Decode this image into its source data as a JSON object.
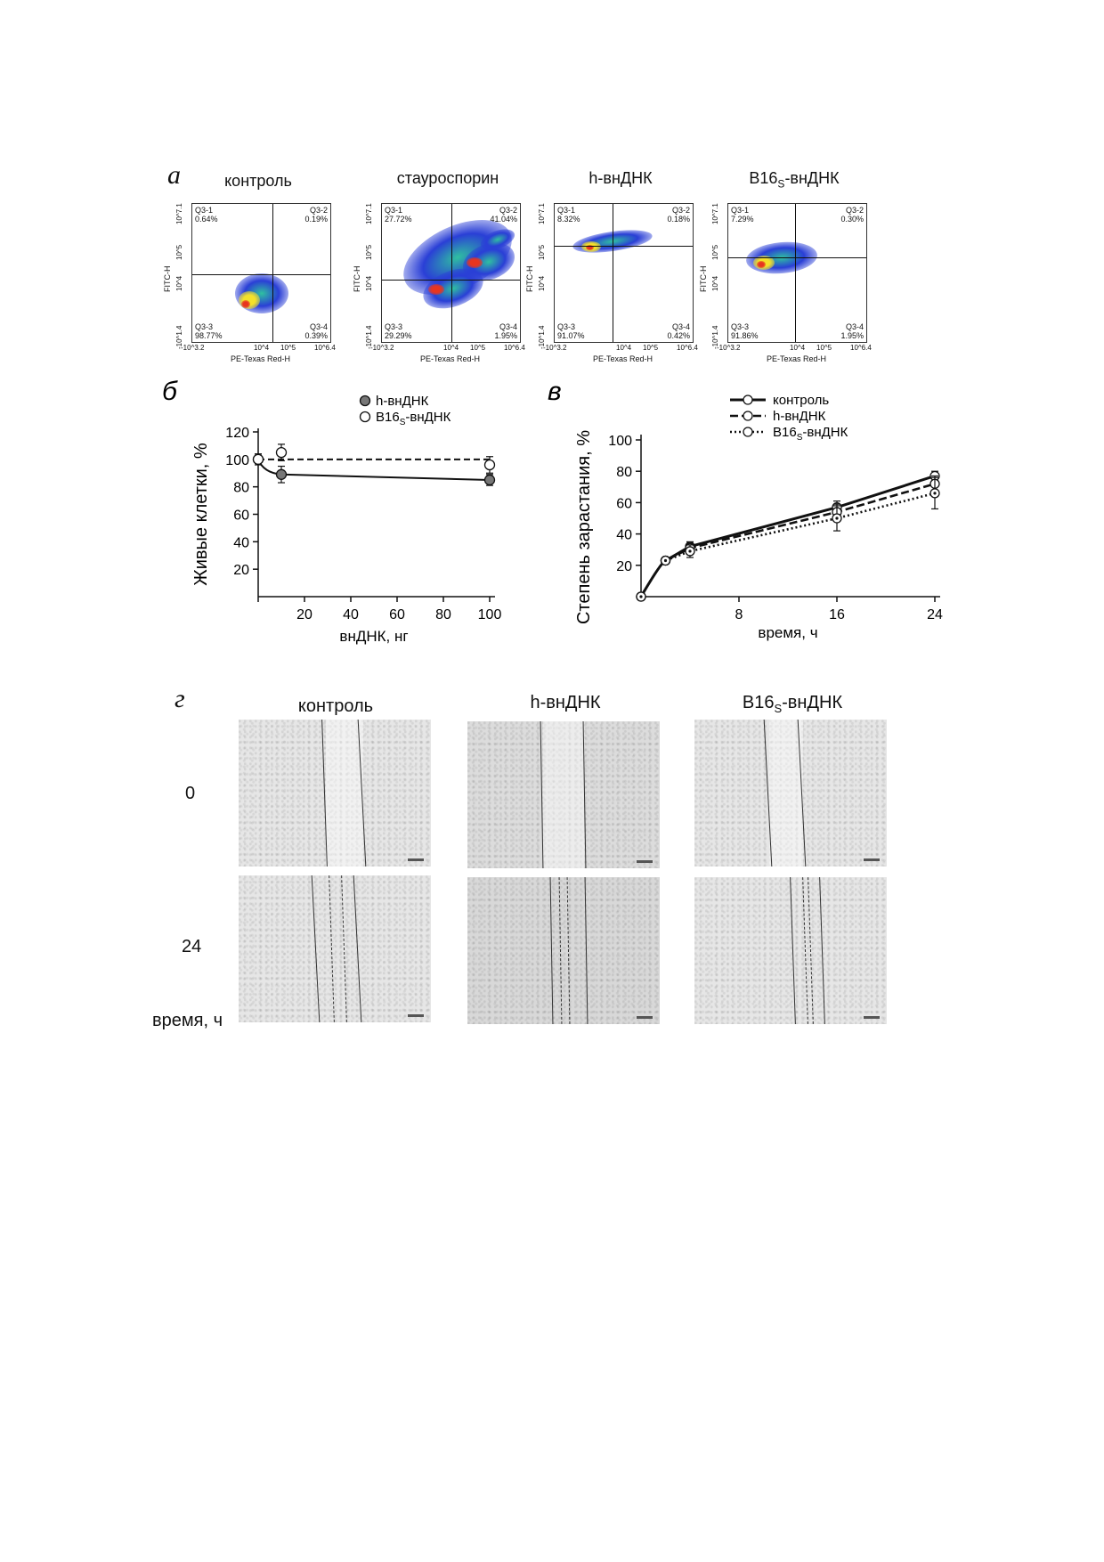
{
  "panel_a": {
    "letter": "а",
    "ylabel": "FITC-H",
    "xlabel": "PE-Texas Red-H",
    "y_ticks": [
      "10^7.1",
      "10^5",
      "10^4",
      "-10^1.4"
    ],
    "x_ticks": [
      "-10^3.2",
      "10^4",
      "10^5",
      "10^6.4"
    ],
    "plots": [
      {
        "title": "контроль",
        "q1": "Q3-1\n0.64%",
        "q2": "Q3-2\n0.19%",
        "q3": "Q3-3\n98.77%",
        "q4": "Q3-4\n0.39%"
      },
      {
        "title": "стауроспорин",
        "q1": "Q3-1\n27.72%",
        "q2": "Q3-2\n41.04%",
        "q3": "Q3-3\n29.29%",
        "q4": "Q3-4\n1.95%"
      },
      {
        "title": "h-внДНК",
        "q1": "Q3-1\n8.32%",
        "q2": "Q3-2\n0.18%",
        "q3": "Q3-3\n91.07%",
        "q4": "Q3-4\n0.42%"
      },
      {
        "title": "B16s-внДНК",
        "title_main": "B16",
        "title_sub": "S",
        "title_rest": "-внДНК",
        "q1": "Q3-1\n7.29%",
        "q2": "Q3-2\n0.30%",
        "q3": "Q3-3\n91.86%",
        "q4": "Q3-4\n1.95%"
      }
    ],
    "colors": {
      "low": "#2a3fd6",
      "mid": "#2fc0a0",
      "high": "#f4e12a",
      "peak": "#e8351f"
    }
  },
  "chart_data": [
    {
      "panel": "б",
      "type": "line",
      "xlabel": "внДНК, нг",
      "ylabel": "Живые клетки, %",
      "x_ticks": [
        20,
        40,
        60,
        80,
        100
      ],
      "y_ticks": [
        20,
        40,
        60,
        80,
        100,
        120
      ],
      "xlim": [
        0,
        100
      ],
      "ylim": [
        0,
        120
      ],
      "series": [
        {
          "name": "h-внДНК",
          "marker": "filled",
          "line": "solid",
          "color": "#111111",
          "x": [
            0,
            10,
            100
          ],
          "y": [
            100,
            89,
            85
          ],
          "err": [
            4,
            6,
            4
          ]
        },
        {
          "name": "B16s-внДНК",
          "name_main": "B16",
          "name_sub": "S",
          "name_rest": "-внДНК",
          "marker": "open",
          "line": "dashed",
          "color": "#111111",
          "x": [
            0,
            10,
            100
          ],
          "y": [
            100,
            105,
            96
          ],
          "err": [
            3,
            6,
            6
          ]
        }
      ]
    },
    {
      "panel": "в",
      "type": "line",
      "xlabel": "время, ч",
      "ylabel": "Степень зарастания, %",
      "x_ticks": [
        8,
        16,
        24
      ],
      "y_ticks": [
        20,
        40,
        60,
        80,
        100
      ],
      "xlim": [
        0,
        24
      ],
      "ylim": [
        0,
        100
      ],
      "series": [
        {
          "name": "контроль",
          "line": "solid",
          "x": [
            0,
            2,
            4,
            16,
            24
          ],
          "y": [
            0,
            23,
            32,
            57,
            77
          ],
          "err": [
            1,
            2,
            3,
            4,
            3
          ]
        },
        {
          "name": "h-внДНК",
          "line": "dashed",
          "x": [
            0,
            2,
            4,
            16,
            24
          ],
          "y": [
            0,
            23,
            31,
            54,
            72
          ],
          "err": [
            1,
            2,
            3,
            5,
            5
          ]
        },
        {
          "name": "B16s-внДНК",
          "name_main": "B16",
          "name_sub": "S",
          "name_rest": "-внДНК",
          "line": "dotted",
          "x": [
            0,
            2,
            4,
            16,
            24
          ],
          "y": [
            0,
            23,
            29,
            50,
            66
          ],
          "err": [
            1,
            2,
            4,
            8,
            10
          ]
        }
      ]
    }
  ],
  "panel_g": {
    "letter": "г",
    "columns": [
      {
        "label": "контроль"
      },
      {
        "label": "h-внДНК"
      },
      {
        "label": "B16s-внДНК",
        "label_main": "B16",
        "label_sub": "S",
        "label_rest": "-внДНК"
      }
    ],
    "rows": [
      "0",
      "24"
    ],
    "time_label": "время, ч"
  }
}
